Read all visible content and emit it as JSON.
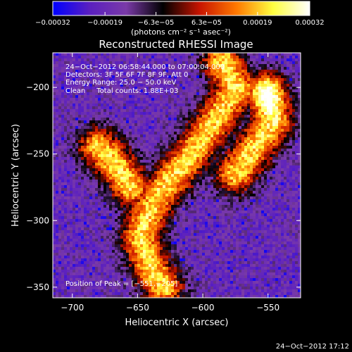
{
  "chart_data": {
    "type": "heatmap",
    "title": "Reconstructed RHESSI Image",
    "xlabel": "Heliocentric X (arcsec)",
    "ylabel": "Heliocentric Y (arcsec)",
    "xlim": [
      -715,
      -525
    ],
    "ylim": [
      -358,
      -174
    ],
    "x_ticks": [
      -700,
      -650,
      -600,
      -550
    ],
    "y_ticks": [
      -200,
      -250,
      -300,
      -350
    ],
    "x_tick_labels": [
      "−700",
      "−650",
      "−600",
      "−550"
    ],
    "y_tick_labels": [
      "−200",
      "−250",
      "−300",
      "−350"
    ],
    "colorbar": {
      "range": [
        -0.00032,
        0.00032
      ],
      "tick_values": [
        -0.00032,
        -0.00019,
        -6.3e-05,
        6.3e-05,
        0.00019,
        0.00032
      ],
      "tick_labels": [
        "−0.00032",
        "−0.00019",
        "−6.3e−05",
        "6.3e−05",
        "0.00019",
        "0.00032"
      ],
      "units_label": "(photons cm⁻² s⁻¹ asec⁻²)",
      "colors": [
        "#0000ff",
        "#5a1fc0",
        "#7a3aa8",
        "#000000",
        "#c81400",
        "#ff7800",
        "#ffff40",
        "#ffffff"
      ]
    },
    "annotations": [
      "24−Oct−2012 06:58:44.000 to 07:00:04.000",
      "Detectors: 3F 5F 6F 7F 8F 9F, Att 0",
      "Energy Range: 25.0 − 50.0 keV",
      "Clean     Total counts: 1.88E+03"
    ],
    "peak_label": "Position of Peak = [−551,−205]",
    "peak": [
      -551,
      -205
    ],
    "emission_ridges": [
      {
        "points": [
          [
            -585,
            -180
          ],
          [
            -575,
            -200
          ],
          [
            -590,
            -225
          ],
          [
            -605,
            -245
          ],
          [
            -618,
            -262
          ],
          [
            -632,
            -278
          ],
          [
            -642,
            -295
          ],
          [
            -648,
            -312
          ],
          [
            -640,
            -335
          ],
          [
            -630,
            -350
          ]
        ]
      },
      {
        "points": [
          [
            -551,
            -205
          ],
          [
            -545,
            -225
          ],
          [
            -560,
            -245
          ],
          [
            -575,
            -265
          ]
        ]
      },
      {
        "points": [
          [
            -680,
            -245
          ],
          [
            -665,
            -260
          ],
          [
            -655,
            -275
          ]
        ]
      }
    ],
    "timestamp": "24−Oct−2012 17:12"
  }
}
